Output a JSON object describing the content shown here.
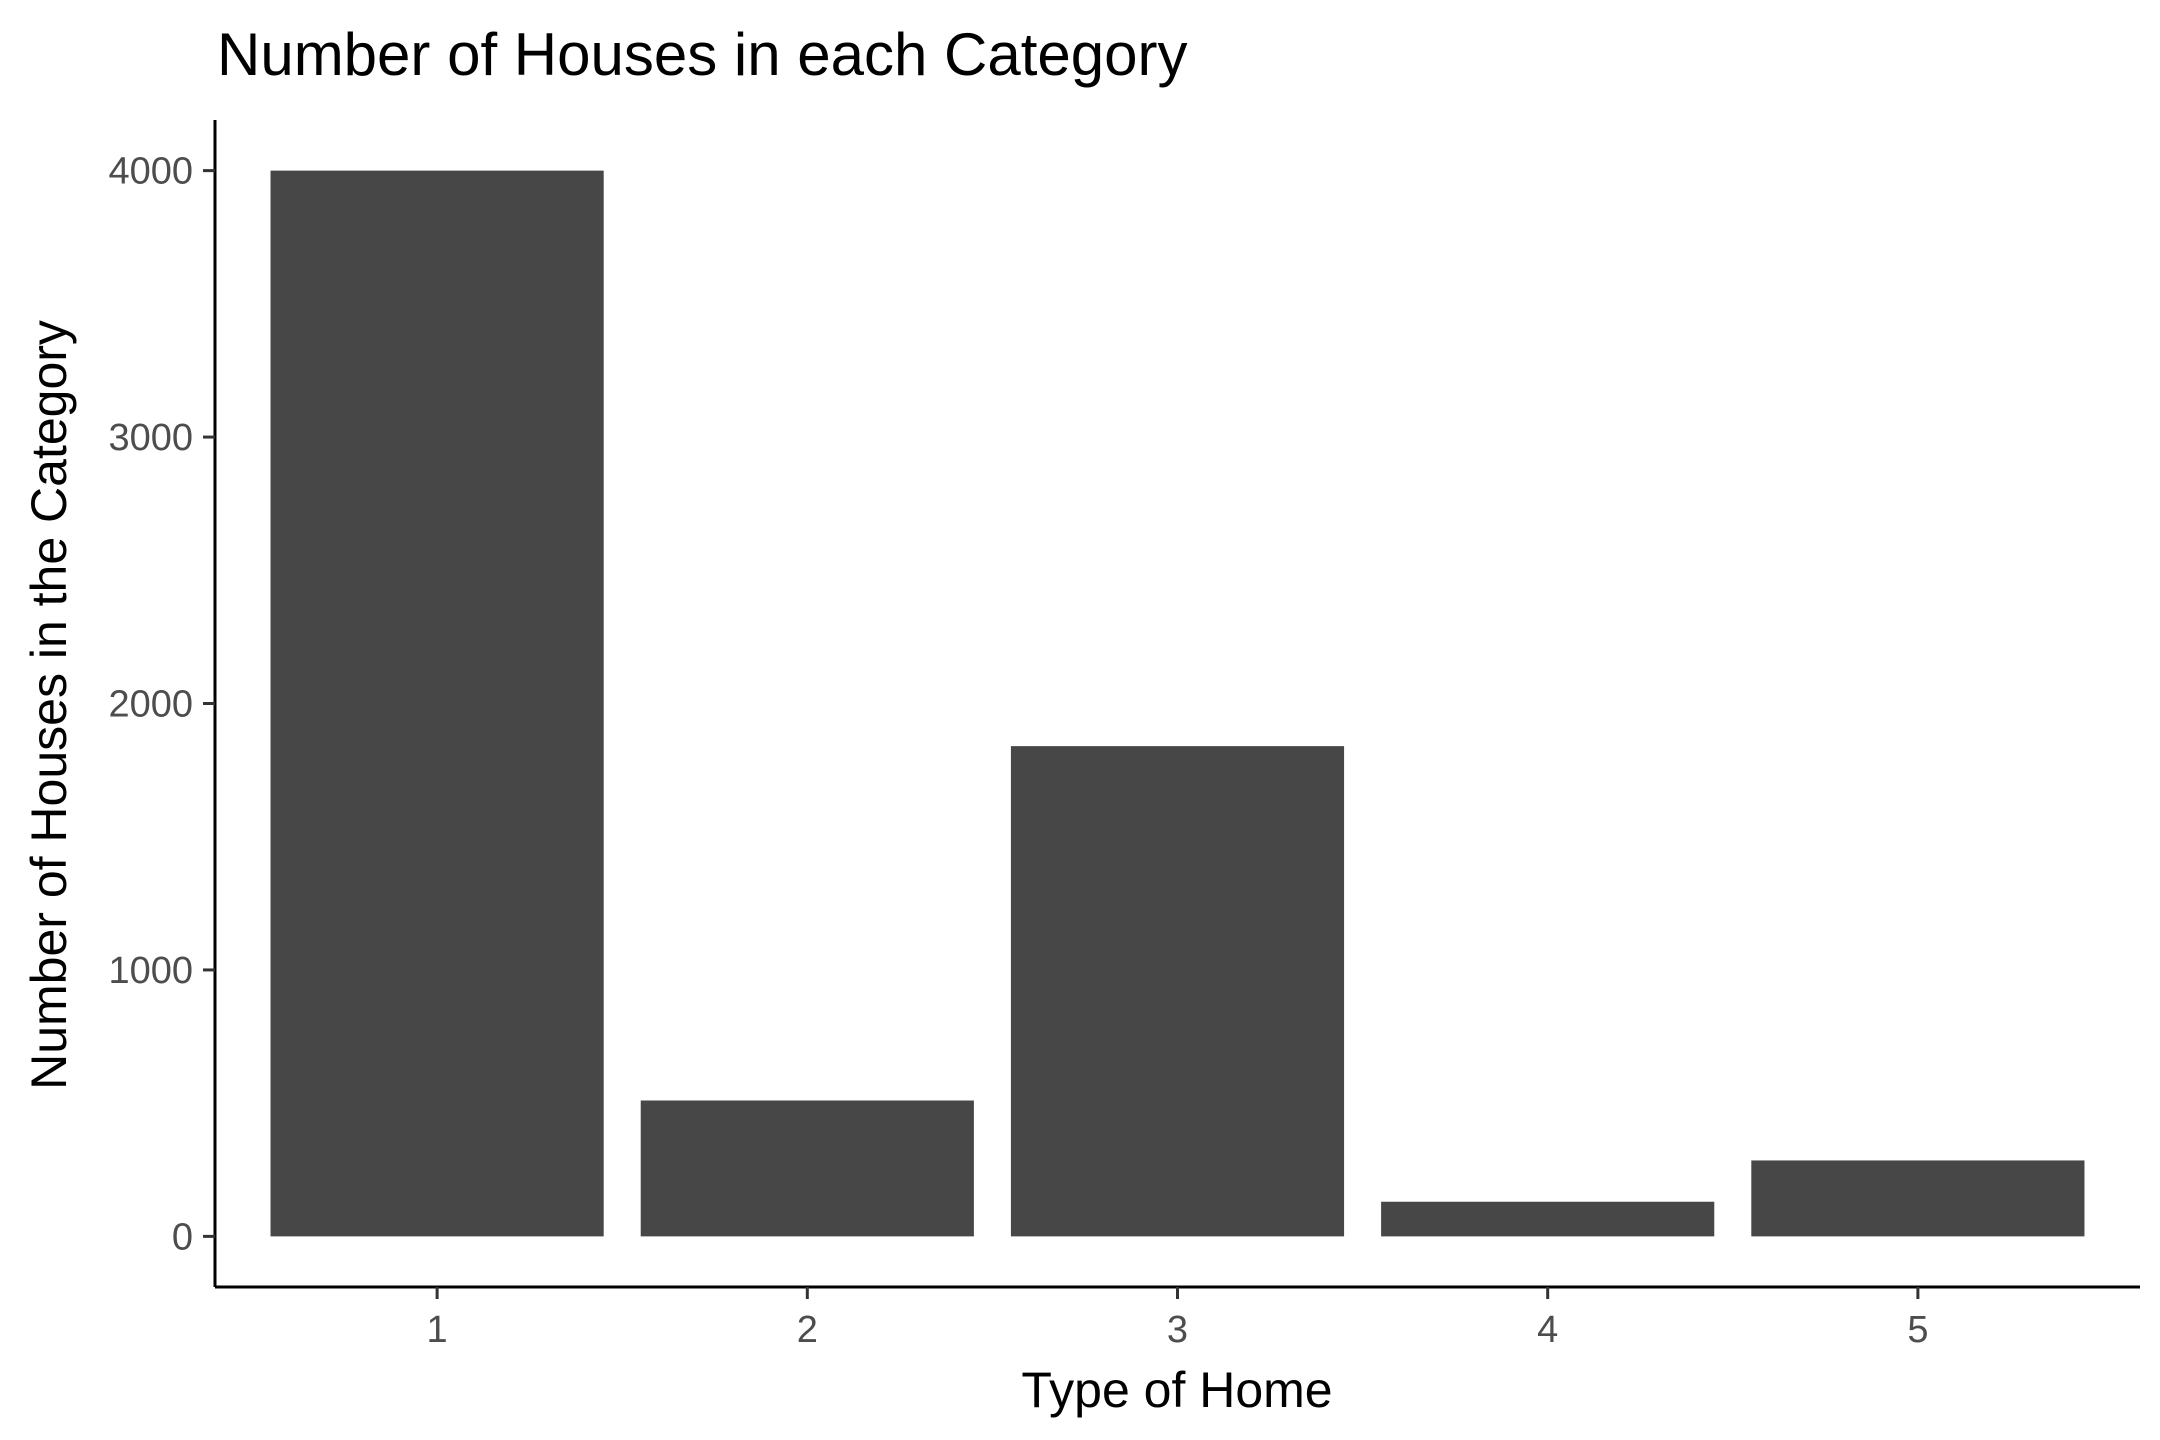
{
  "chart_data": {
    "type": "bar",
    "title": "Number of Houses in each Category",
    "xlabel": "Type of Home",
    "ylabel": "Number of Houses in the Category",
    "categories": [
      "1",
      "2",
      "3",
      "4",
      "5"
    ],
    "values": [
      4000,
      510,
      1840,
      130,
      285
    ],
    "ylim": [
      -190,
      4190
    ],
    "yticks": [
      0,
      1000,
      2000,
      3000,
      4000
    ],
    "ytick_labels": [
      "0",
      "1000",
      "2000",
      "3000",
      "4000"
    ],
    "bar_color": "#474747",
    "grid": false,
    "legend": "none"
  }
}
